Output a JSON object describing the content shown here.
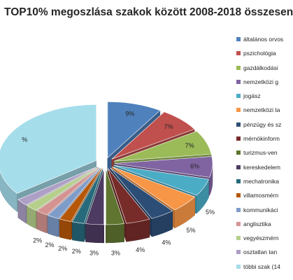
{
  "chart_data": {
    "type": "pie",
    "title": "TOP10% megoszlása szakok között 2008-2018 összesen",
    "legend_position": "right",
    "legend": [
      "általános orvos",
      "pszichológia",
      "gazdálkodási",
      "nemzetközi g",
      "jogász",
      "nemzetközi ta",
      "pénzügy és sz",
      "mérnökinform",
      "turizmus-ven",
      "kereskedelem",
      "mechatronika",
      "villamosmérn",
      "kommunikáci",
      "anglisztika",
      "vegyészmérn",
      "osztatlan tan",
      "többi szak (14"
    ],
    "values": [
      9,
      7,
      7,
      6,
      5,
      5,
      4,
      4,
      3,
      3,
      2,
      2,
      2,
      2,
      2,
      2,
      35
    ],
    "data_labels": [
      "9%",
      "7%",
      "7%",
      "6%",
      "5%",
      "5%",
      "4%",
      "4%",
      "3%",
      "3%",
      "2%",
      "2%",
      "2%",
      "2%",
      "",
      "",
      "%"
    ],
    "colors": [
      "#4F81BD",
      "#C0504D",
      "#9BBB59",
      "#8064A2",
      "#4BACC6",
      "#F79646",
      "#2C4D75",
      "#772C2A",
      "#5F7530",
      "#4D3B62",
      "#276A7C",
      "#B65708",
      "#7F9CC9",
      "#D49391",
      "#B5CF8B",
      "#AD9FC6",
      "#A5DDEB"
    ],
    "exploded": true,
    "three_d": true
  }
}
